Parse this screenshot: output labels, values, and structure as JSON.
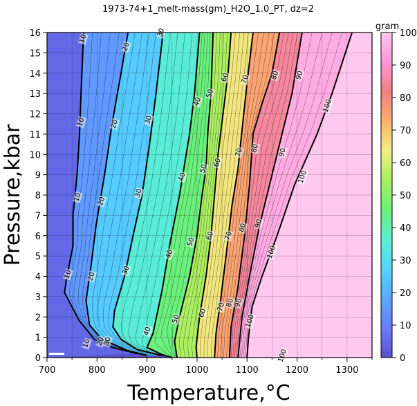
{
  "chart_data": {
    "type": "heatmap",
    "title": "1973-74+1_melt-mass(gm)_H2O_1.0_PT, dz=2",
    "xlabel": "Temperature,°C",
    "ylabel": "Pressure,kbar",
    "xlim": [
      700,
      1350
    ],
    "ylim": [
      0,
      16
    ],
    "x_ticks": [
      "700",
      "800",
      "900",
      "1000",
      "1100",
      "1200",
      "1300"
    ],
    "y_ticks": [
      "0",
      "1",
      "2",
      "3",
      "4",
      "5",
      "6",
      "7",
      "8",
      "9",
      "10",
      "11",
      "12",
      "13",
      "14",
      "15",
      "16"
    ],
    "colorbar": {
      "label": "gram",
      "range": [
        0,
        100
      ],
      "ticks": [
        "0",
        "10",
        "20",
        "30",
        "40",
        "50",
        "60",
        "70",
        "80",
        "90",
        "100"
      ],
      "colors": [
        "#5a50c8",
        "#6a7cff",
        "#5aa8ff",
        "#55d6ff",
        "#5af0d0",
        "#6cf07a",
        "#a8f060",
        "#f0f080",
        "#ffb070",
        "#f08080",
        "#ff96d8",
        "#ffc8f0"
      ]
    },
    "contours": [
      {
        "level": 10,
        "points": [
          [
            773,
            16
          ],
          [
            768,
            13
          ],
          [
            765,
            11
          ],
          [
            760,
            9
          ],
          [
            752,
            7
          ],
          [
            752,
            5.5
          ],
          [
            740,
            4
          ],
          [
            735,
            3.2
          ],
          [
            765,
            1.8
          ],
          [
            795,
            0.9
          ],
          [
            830,
            0.5
          ],
          [
            880,
            0.2
          ]
        ],
        "labels": [
          {
            "text": "10",
            "x": 771,
            "y": 15.7
          },
          {
            "text": "10",
            "x": 767,
            "y": 11.6
          },
          {
            "text": "10",
            "x": 760,
            "y": 7.9
          },
          {
            "text": "10",
            "x": 741,
            "y": 4.1
          },
          {
            "text": "10",
            "x": 778,
            "y": 0.7
          }
        ]
      },
      {
        "level": 20,
        "points": [
          [
            862,
            16
          ],
          [
            848,
            14
          ],
          [
            830,
            11.5
          ],
          [
            815,
            9
          ],
          [
            798,
            6.5
          ],
          [
            788,
            4.5
          ],
          [
            778,
            2.8
          ],
          [
            785,
            1.6
          ],
          [
            810,
            0.9
          ],
          [
            860,
            0.35
          ],
          [
            900,
            0.1
          ]
        ],
        "labels": [
          {
            "text": "20",
            "x": 857,
            "y": 15.3
          },
          {
            "text": "20",
            "x": 834,
            "y": 11.5
          },
          {
            "text": "20",
            "x": 808,
            "y": 7.7
          },
          {
            "text": "20",
            "x": 788,
            "y": 4.0
          },
          {
            "text": "20",
            "x": 806,
            "y": 0.8
          }
        ]
      },
      {
        "level": 30,
        "points": [
          [
            932,
            16
          ],
          [
            918,
            13
          ],
          [
            905,
            10.5
          ],
          [
            890,
            8
          ],
          [
            872,
            6
          ],
          [
            855,
            4
          ],
          [
            835,
            2.3
          ],
          [
            832,
            1.5
          ],
          [
            848,
            0.9
          ],
          [
            880,
            0.4
          ],
          [
            930,
            0.1
          ]
        ],
        "labels": [
          {
            "text": "30",
            "x": 927,
            "y": 16.0
          },
          {
            "text": "30",
            "x": 902,
            "y": 11.7
          },
          {
            "text": "30",
            "x": 882,
            "y": 8.1
          },
          {
            "text": "30",
            "x": 857,
            "y": 4.3
          },
          {
            "text": "30",
            "x": 820,
            "y": 0.8
          }
        ]
      },
      {
        "level": 40,
        "points": [
          [
            1005,
            16
          ],
          [
            995,
            13
          ],
          [
            985,
            11
          ],
          [
            965,
            8
          ],
          [
            945,
            5.5
          ],
          [
            930,
            3.3
          ],
          [
            912,
            1.2
          ],
          [
            900,
            0.5
          ],
          [
            930,
            0.15
          ],
          [
            950,
            0
          ]
        ],
        "labels": [
          {
            "text": "40",
            "x": 1000,
            "y": 12.6
          },
          {
            "text": "40",
            "x": 969,
            "y": 8.9
          },
          {
            "text": "40",
            "x": 944,
            "y": 5.1
          },
          {
            "text": "40",
            "x": 900,
            "y": 1.3
          }
        ]
      },
      {
        "level": 50,
        "points": [
          [
            1032,
            16
          ],
          [
            1028,
            13
          ],
          [
            1022,
            11.2
          ],
          [
            1018,
            9.3
          ],
          [
            1010,
            8
          ],
          [
            1000,
            6
          ],
          [
            985,
            4
          ],
          [
            965,
            2
          ],
          [
            955,
            0.8
          ],
          [
            960,
            0
          ]
        ],
        "labels": [
          {
            "text": "50",
            "x": 1025,
            "y": 13.0
          },
          {
            "text": "50",
            "x": 1012,
            "y": 9.3
          },
          {
            "text": "50",
            "x": 987,
            "y": 5.7
          },
          {
            "text": "50",
            "x": 957,
            "y": 1.9
          }
        ]
      },
      {
        "level": 60,
        "points": [
          [
            1068,
            16
          ],
          [
            1062,
            14
          ],
          [
            1052,
            12
          ],
          [
            1042,
            10
          ],
          [
            1035,
            8
          ],
          [
            1028,
            6
          ],
          [
            1018,
            4
          ],
          [
            1005,
            2
          ],
          [
            998,
            0.5
          ],
          [
            1000,
            0
          ]
        ],
        "labels": [
          {
            "text": "60",
            "x": 1055,
            "y": 13.8
          },
          {
            "text": "60",
            "x": 1040,
            "y": 9.6
          },
          {
            "text": "60",
            "x": 1025,
            "y": 6.0
          },
          {
            "text": "60",
            "x": 1010,
            "y": 2.2
          }
        ]
      },
      {
        "level": 70,
        "points": [
          [
            1112,
            16
          ],
          [
            1100,
            13.5
          ],
          [
            1090,
            11.2
          ],
          [
            1082,
            9.3
          ],
          [
            1070,
            7.5
          ],
          [
            1058,
            5
          ],
          [
            1048,
            3
          ],
          [
            1038,
            1.2
          ],
          [
            1035,
            0
          ]
        ],
        "labels": [
          {
            "text": "70",
            "x": 1095,
            "y": 13.7
          },
          {
            "text": "70",
            "x": 1083,
            "y": 10.1
          },
          {
            "text": "70",
            "x": 1062,
            "y": 6.0
          },
          {
            "text": "70",
            "x": 1047,
            "y": 2.5
          }
        ]
      },
      {
        "level": 80,
        "points": [
          [
            1165,
            16
          ],
          [
            1150,
            14
          ],
          [
            1130,
            12.5
          ],
          [
            1112,
            11
          ],
          [
            1105,
            8.5
          ],
          [
            1095,
            6
          ],
          [
            1082,
            3.5
          ],
          [
            1068,
            1.5
          ],
          [
            1065,
            0
          ]
        ],
        "labels": [
          {
            "text": "80",
            "x": 1155,
            "y": 13.9
          },
          {
            "text": "80",
            "x": 1115,
            "y": 10.3
          },
          {
            "text": "80",
            "x": 1090,
            "y": 6.4
          },
          {
            "text": "80",
            "x": 1065,
            "y": 2.7
          }
        ]
      },
      {
        "level": 90,
        "points": [
          [
            1210,
            16
          ],
          [
            1190,
            13
          ],
          [
            1170,
            11
          ],
          [
            1150,
            9
          ],
          [
            1125,
            6.5
          ],
          [
            1105,
            4
          ],
          [
            1090,
            2
          ],
          [
            1082,
            0
          ]
        ],
        "labels": [
          {
            "text": "90",
            "x": 1204,
            "y": 13.9
          },
          {
            "text": "90",
            "x": 1170,
            "y": 10.1
          },
          {
            "text": "90",
            "x": 1122,
            "y": 6.6
          },
          {
            "text": "90",
            "x": 1082,
            "y": 2.7
          }
        ]
      },
      {
        "level": 100,
        "points": [
          [
            1310,
            16
          ],
          [
            1270,
            13
          ],
          [
            1240,
            11
          ],
          [
            1195,
            8.5
          ],
          [
            1160,
            6
          ],
          [
            1130,
            4
          ],
          [
            1110,
            2.5
          ],
          [
            1103,
            1
          ],
          [
            1100,
            0
          ]
        ],
        "labels": [
          {
            "text": "100",
            "x": 1260,
            "y": 12.4
          },
          {
            "text": "100",
            "x": 1210,
            "y": 8.9
          },
          {
            "text": "100",
            "x": 1148,
            "y": 5.2
          },
          {
            "text": "100",
            "x": 1105,
            "y": 1.8
          },
          {
            "text": "100",
            "x": 1170,
            "y": 0.1
          }
        ]
      }
    ]
  }
}
